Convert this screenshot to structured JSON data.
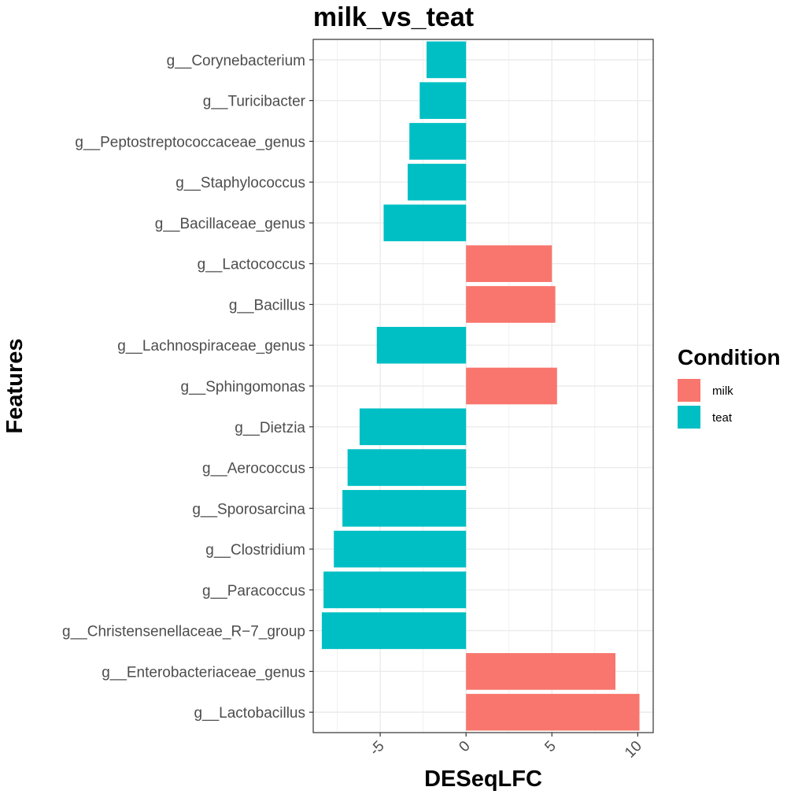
{
  "chart_data": {
    "type": "bar",
    "orientation": "horizontal",
    "title": "milk_vs_teat",
    "xlabel": "DESeqLFC",
    "ylabel": "Features",
    "xlim": [
      -8.9,
      10.9
    ],
    "xticks": [
      -5,
      0,
      5,
      10
    ],
    "xtick_labels": [
      "-5",
      "0",
      "5",
      "10"
    ],
    "grid": true,
    "legend": {
      "title": "Condition",
      "position": "right",
      "entries": [
        {
          "label": "milk",
          "color": "#F8766D"
        },
        {
          "label": "teat",
          "color": "#00BFC4"
        }
      ]
    },
    "categories": [
      "g__Corynebacterium",
      "g__Turicibacter",
      "g__Peptostreptococcaceae_genus",
      "g__Staphylococcus",
      "g__Bacillaceae_genus",
      "g__Lactococcus",
      "g__Bacillus",
      "g__Lachnospiraceae_genus",
      "g__Sphingomonas",
      "g__Dietzia",
      "g__Aerococcus",
      "g__Sporosarcina",
      "g__Clostridium",
      "g__Paracoccus",
      "g__Christensenellaceae_R−7_group",
      "g__Enterobacteriaceae_genus",
      "g__Lactobacillus"
    ],
    "values": [
      -2.3,
      -2.7,
      -3.3,
      -3.4,
      -4.8,
      5.0,
      5.2,
      -5.2,
      5.3,
      -6.2,
      -6.9,
      -7.2,
      -7.7,
      -8.3,
      -8.4,
      8.7,
      10.1
    ],
    "conditions": [
      "teat",
      "teat",
      "teat",
      "teat",
      "teat",
      "milk",
      "milk",
      "teat",
      "milk",
      "teat",
      "teat",
      "teat",
      "teat",
      "teat",
      "teat",
      "milk",
      "milk"
    ]
  }
}
